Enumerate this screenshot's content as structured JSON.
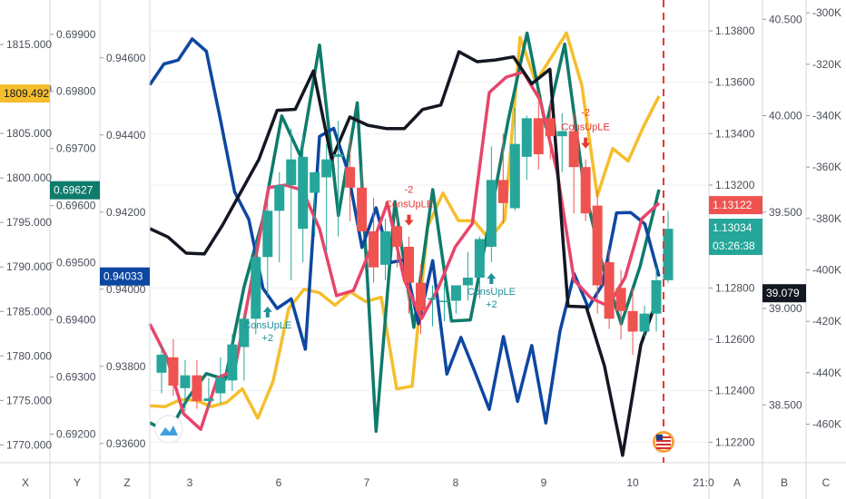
{
  "chart_data": {
    "type": "candlestick",
    "instrument": "EURUSD",
    "x_ticks": [
      "3",
      "6",
      "7",
      "8",
      "9",
      "10",
      "21:0"
    ],
    "axis_letters": {
      "left": [
        "X",
        "Y",
        "Z"
      ],
      "right": [
        "A",
        "B",
        "C"
      ]
    },
    "axes": {
      "X": {
        "ticks": [
          "1815.000",
          "1810.000",
          "1805.000",
          "1800.000",
          "1795.000",
          "1790.000",
          "1785.000",
          "1780.000",
          "1775.000",
          "1770.000"
        ],
        "ylim": [
          1768,
          1820
        ],
        "last_label": "1809.492",
        "last_color": "#f6be2d"
      },
      "Y": {
        "ticks": [
          "0.69900",
          "0.69800",
          "0.69700",
          "0.69600",
          "0.69500",
          "0.69400",
          "0.69300",
          "0.69200"
        ],
        "ylim": [
          0.6915,
          0.6996
        ],
        "last_label": "0.69627",
        "last_color": "#0e7b6b"
      },
      "Z": {
        "ticks": [
          "0.94600",
          "0.94400",
          "0.94200",
          "0.94000",
          "0.93800",
          "0.93600"
        ],
        "ylim": [
          0.9355,
          0.9475
        ],
        "last_label": "0.94033",
        "last_color": "#0d47a1"
      },
      "A": {
        "ticks": [
          "1.13800",
          "1.13600",
          "1.13400",
          "1.13200",
          "1.12800",
          "1.12600",
          "1.12400",
          "1.12200"
        ],
        "ylim": [
          1.1212,
          1.1392
        ],
        "last_labels": [
          "1.13122",
          "1.13034",
          "03:26:38"
        ]
      },
      "B": {
        "ticks": [
          "40.500",
          "40.000",
          "39.500",
          "39.000",
          "38.500"
        ],
        "ylim": [
          38.2,
          40.6
        ],
        "last_label": "39.079",
        "last_color": "#131722"
      },
      "C": {
        "ticks": [
          "-300K",
          "-320K",
          "-340K",
          "-360K",
          "-380K",
          "-400K",
          "-420K",
          "-440K",
          "-460K"
        ],
        "ylim": [
          -475,
          -295
        ]
      }
    },
    "candles": [
      [
        1.1247,
        1.1258,
        1.1239,
        1.1254
      ],
      [
        1.1253,
        1.126,
        1.1238,
        1.1242
      ],
      [
        1.1241,
        1.1252,
        1.1232,
        1.1246
      ],
      [
        1.1246,
        1.1252,
        1.1233,
        1.1236
      ],
      [
        1.1236,
        1.1245,
        1.1233,
        1.1237
      ],
      [
        1.1239,
        1.1253,
        1.1235,
        1.1245
      ],
      [
        1.1244,
        1.1262,
        1.124,
        1.1258
      ],
      [
        1.1257,
        1.127,
        1.1244,
        1.1268
      ],
      [
        1.1268,
        1.1298,
        1.1262,
        1.1292
      ],
      [
        1.1292,
        1.1314,
        1.1277,
        1.131
      ],
      [
        1.131,
        1.1325,
        1.129,
        1.132
      ],
      [
        1.132,
        1.1342,
        1.1283,
        1.133
      ],
      [
        1.1303,
        1.134,
        1.129,
        1.1331
      ],
      [
        1.1317,
        1.1325,
        1.13,
        1.1325
      ],
      [
        1.1323,
        1.1336,
        1.1294,
        1.133
      ],
      [
        1.1331,
        1.1345,
        1.13,
        1.1332
      ],
      [
        1.1327,
        1.1338,
        1.1306,
        1.1319
      ],
      [
        1.1319,
        1.1327,
        1.1302,
        1.1302
      ],
      [
        1.1302,
        1.1315,
        1.1282,
        1.1288
      ],
      [
        1.1289,
        1.1307,
        1.1283,
        1.1302
      ],
      [
        1.1304,
        1.1309,
        1.1288,
        1.1296
      ],
      [
        1.1296,
        1.13,
        1.127,
        1.1282
      ],
      [
        1.1282,
        1.1289,
        1.1262,
        1.1271
      ],
      [
        1.1276,
        1.1281,
        1.1265,
        1.1276
      ],
      [
        1.1275,
        1.1282,
        1.1267,
        1.1275
      ],
      [
        1.1275,
        1.1281,
        1.127,
        1.1281
      ],
      [
        1.1281,
        1.1294,
        1.1275,
        1.1284
      ],
      [
        1.1284,
        1.13,
        1.1276,
        1.1299
      ],
      [
        1.1296,
        1.1335,
        1.129,
        1.1322
      ],
      [
        1.1322,
        1.134,
        1.1305,
        1.1313
      ],
      [
        1.1311,
        1.135,
        1.131,
        1.1336
      ],
      [
        1.1331,
        1.1347,
        1.1322,
        1.1346
      ],
      [
        1.1346,
        1.1356,
        1.1326,
        1.1332
      ],
      [
        1.1346,
        1.1352,
        1.133,
        1.1339
      ],
      [
        1.1339,
        1.1348,
        1.1325,
        1.1341
      ],
      [
        1.1341,
        1.1348,
        1.1309,
        1.1327
      ],
      [
        1.1327,
        1.133,
        1.1306,
        1.1309
      ],
      [
        1.1312,
        1.1318,
        1.127,
        1.1281
      ],
      [
        1.129,
        1.1295,
        1.1264,
        1.1268
      ],
      [
        1.128,
        1.1287,
        1.126,
        1.1271
      ],
      [
        1.1271,
        1.128,
        1.1254,
        1.1263
      ],
      [
        1.1263,
        1.1273,
        1.1261,
        1.127
      ],
      [
        1.127,
        1.1288,
        1.1263,
        1.1283
      ],
      [
        1.1283,
        1.131,
        1.1282,
        1.1303
      ]
    ],
    "lines": [
      {
        "color": "#f6be2d",
        "axis": "X",
        "values": [
          1774.4,
          1774.3,
          1775.1,
          1775.0,
          1774.3,
          1774.8,
          1776.3,
          1773.0,
          1777.2,
          1785.3,
          1787.5,
          1787.1,
          1785.7,
          1787.2,
          1786.1,
          1786.6,
          1776.3,
          1776.6,
          1794.5,
          1798.3,
          1795.2,
          1795.2,
          1793.1,
          1795.3,
          1815.8,
          1810.8,
          1813.5,
          1816.3,
          1810.4,
          1798.0,
          1803.3,
          1801.9,
          1805.8,
          1809.2
        ]
      },
      {
        "color": "#0e7b6b",
        "axis": "Y",
        "values": [
          0.6922,
          0.69203,
          0.69262,
          0.69306,
          0.69296,
          0.69458,
          0.69577,
          0.69757,
          0.69686,
          0.69881,
          0.69583,
          0.6978,
          0.69205,
          0.69607,
          0.69387,
          0.69628,
          0.69398,
          0.694,
          0.6957,
          0.69749,
          0.69902,
          0.69738,
          0.69883,
          0.69637,
          0.69496,
          0.69393,
          0.69494,
          0.69628
        ]
      },
      {
        "color": "#0d47a1",
        "axis": "Z",
        "values": [
          0.9453,
          0.94584,
          0.94594,
          0.94649,
          0.94617,
          0.94439,
          0.94252,
          0.94181,
          0.94002,
          0.9395,
          0.93975,
          0.93844,
          0.94396,
          0.94417,
          0.94307,
          0.94108,
          0.94211,
          0.94069,
          0.94076,
          0.9391,
          0.94074,
          0.9378,
          0.93875,
          0.93784,
          0.93688,
          0.93877,
          0.93709,
          0.93854,
          0.93653,
          0.93891,
          0.9404,
          0.93952,
          0.94012,
          0.94198,
          0.94199,
          0.94169,
          0.94033
        ]
      },
      {
        "color": "#e8446b",
        "axis": "A",
        "values": [
          1.1266,
          1.1253,
          1.1231,
          1.1225,
          1.1245,
          1.1248,
          1.1283,
          1.1319,
          1.132,
          1.1318,
          1.1303,
          1.1277,
          1.1279,
          1.1295,
          1.1313,
          1.1283,
          1.1268,
          1.128,
          1.1296,
          1.1305,
          1.1356,
          1.1362,
          1.1364,
          1.1353,
          1.1325,
          1.1283,
          1.1276,
          1.1273,
          1.1284,
          1.1307,
          1.1313
        ]
      },
      {
        "color": "#131722",
        "axis": "B",
        "values": [
          39.414,
          39.371,
          39.287,
          39.283,
          39.432,
          39.603,
          39.773,
          40.028,
          40.033,
          40.232,
          39.772,
          39.993,
          39.95,
          39.933,
          39.933,
          40.032,
          40.055,
          40.332,
          40.28,
          40.289,
          40.305,
          40.165,
          40.241,
          39.012,
          39.008,
          38.702,
          38.238,
          38.812,
          39.077
        ]
      }
    ],
    "events": [
      {
        "label": "ConsUpLE",
        "value": "+2",
        "dir": "up"
      },
      {
        "label": "ConsUpLE",
        "value": "-2",
        "dir": "down"
      },
      {
        "label": "ConsUpLE",
        "value": "+2",
        "dir": "up"
      },
      {
        "label": "ConsUpLE",
        "value": "-2",
        "dir": "down"
      }
    ]
  }
}
